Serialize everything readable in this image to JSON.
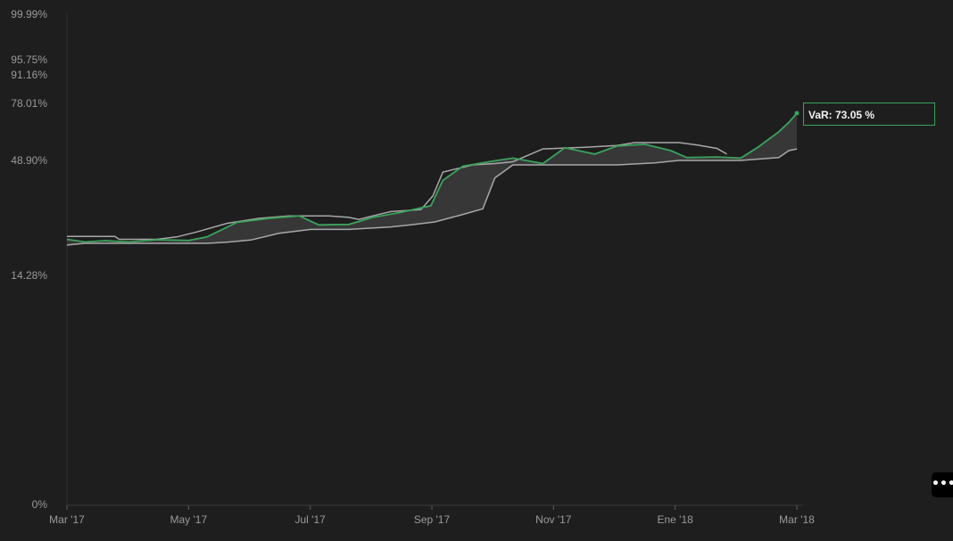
{
  "chart_data": {
    "type": "area",
    "title": "",
    "xlabel": "",
    "ylabel": "",
    "x_ticks": [
      "Mar '17",
      "May '17",
      "Jul '17",
      "Sep '17",
      "Nov '17",
      "Ene '18",
      "Mar '18"
    ],
    "x_range": [
      "2017-03-01",
      "2018-03-01"
    ],
    "y_ticks": [
      {
        "label": "0%",
        "value": 0
      },
      {
        "label": "14.28%",
        "value": 14.28
      },
      {
        "label": "48.90%",
        "value": 48.9
      },
      {
        "label": "78.01%",
        "value": 78.01
      },
      {
        "label": "91.16%",
        "value": 91.16
      },
      {
        "label": "95.75%",
        "value": 95.75
      },
      {
        "label": "99.99%",
        "value": 99.99
      }
    ],
    "y_scale": "nonlinear (tick labels as printed)",
    "grid": false,
    "colors": {
      "var_line": "#3aa35c",
      "band_line": "#a8a8a8",
      "band_fill": "#3a3a3a"
    },
    "series": [
      {
        "role": "band-upper",
        "points": [
          [
            "2017-03-01",
            30.5
          ],
          [
            "2017-03-25",
            30.5
          ],
          [
            "2017-03-27",
            29.8
          ],
          [
            "2017-04-15",
            29.8
          ],
          [
            "2017-04-25",
            30.4
          ],
          [
            "2017-05-05",
            31.4
          ],
          [
            "2017-05-20",
            33.1
          ],
          [
            "2017-06-05",
            34.1
          ],
          [
            "2017-06-20",
            34.6
          ],
          [
            "2017-07-10",
            34.6
          ],
          [
            "2017-07-20",
            34.3
          ],
          [
            "2017-07-25",
            33.9
          ],
          [
            "2017-08-01",
            34.6
          ],
          [
            "2017-08-10",
            35.6
          ],
          [
            "2017-08-25",
            36.1
          ],
          [
            "2017-08-31",
            39.6
          ],
          [
            "2017-09-05",
            45.5
          ],
          [
            "2017-09-20",
            47.6
          ],
          [
            "2017-10-01",
            48.0
          ],
          [
            "2017-10-10",
            48.5
          ],
          [
            "2017-10-25",
            50.9
          ],
          [
            "2017-11-15",
            51.2
          ],
          [
            "2017-12-01",
            51.5
          ],
          [
            "2017-12-10",
            52.0
          ],
          [
            "2018-01-01",
            52.0
          ],
          [
            "2018-01-10",
            51.6
          ],
          [
            "2018-01-20",
            51.0
          ],
          [
            "2018-01-25",
            50.0
          ]
        ]
      },
      {
        "role": "band-lower",
        "points": [
          [
            "2017-03-01",
            27.2
          ],
          [
            "2017-03-05",
            27.6
          ],
          [
            "2017-03-10",
            28.0
          ],
          [
            "2017-03-20",
            28.0
          ],
          [
            "2017-04-05",
            28.0
          ],
          [
            "2017-05-10",
            28.0
          ],
          [
            "2017-05-20",
            28.5
          ],
          [
            "2017-06-01",
            29.5
          ],
          [
            "2017-06-15",
            31.1
          ],
          [
            "2017-07-01",
            31.9
          ],
          [
            "2017-07-20",
            31.9
          ],
          [
            "2017-08-10",
            32.4
          ],
          [
            "2017-08-20",
            32.8
          ],
          [
            "2017-09-01",
            33.4
          ],
          [
            "2017-09-15",
            34.9
          ],
          [
            "2017-09-25",
            36.3
          ],
          [
            "2017-10-01",
            44.0
          ],
          [
            "2017-10-10",
            47.6
          ],
          [
            "2017-11-01",
            47.6
          ],
          [
            "2017-12-01",
            47.6
          ],
          [
            "2017-12-20",
            48.2
          ],
          [
            "2018-01-01",
            48.9
          ],
          [
            "2018-02-01",
            48.9
          ],
          [
            "2018-02-20",
            49.4
          ],
          [
            "2018-02-25",
            50.6
          ],
          [
            "2018-03-01",
            50.9
          ]
        ]
      },
      {
        "role": "var",
        "name": "VaR",
        "points": [
          [
            "2017-03-01",
            29.8
          ],
          [
            "2017-03-10",
            28.6
          ],
          [
            "2017-03-20",
            29.2
          ],
          [
            "2017-04-01",
            28.6
          ],
          [
            "2017-04-15",
            29.6
          ],
          [
            "2017-05-01",
            29.3
          ],
          [
            "2017-05-10",
            30.4
          ],
          [
            "2017-05-25",
            33.3
          ],
          [
            "2017-06-10",
            34.1
          ],
          [
            "2017-06-25",
            34.6
          ],
          [
            "2017-07-05",
            32.8
          ],
          [
            "2017-07-20",
            32.9
          ],
          [
            "2017-08-01",
            34.3
          ],
          [
            "2017-08-15",
            35.4
          ],
          [
            "2017-08-30",
            37.1
          ],
          [
            "2017-09-05",
            43.4
          ],
          [
            "2017-09-15",
            47.2
          ],
          [
            "2017-09-30",
            48.7
          ],
          [
            "2017-10-10",
            49.3
          ],
          [
            "2017-10-25",
            48.0
          ],
          [
            "2017-11-05",
            51.1
          ],
          [
            "2017-11-20",
            50.0
          ],
          [
            "2017-12-01",
            51.4
          ],
          [
            "2017-12-15",
            51.7
          ],
          [
            "2017-12-28",
            50.6
          ],
          [
            "2018-01-05",
            49.4
          ],
          [
            "2018-01-20",
            49.5
          ],
          [
            "2018-02-01",
            49.3
          ],
          [
            "2018-02-10",
            51.3
          ],
          [
            "2018-02-20",
            57.3
          ],
          [
            "2018-02-25",
            64.2
          ],
          [
            "2018-03-01",
            73.05
          ]
        ]
      }
    ],
    "tooltip": {
      "label": "VaR: 73.05 %",
      "x": "2018-03-01",
      "value": 73.05
    }
  },
  "toolbar": {
    "more_label": "•••",
    "more_icon": "ellipsis-icon"
  }
}
